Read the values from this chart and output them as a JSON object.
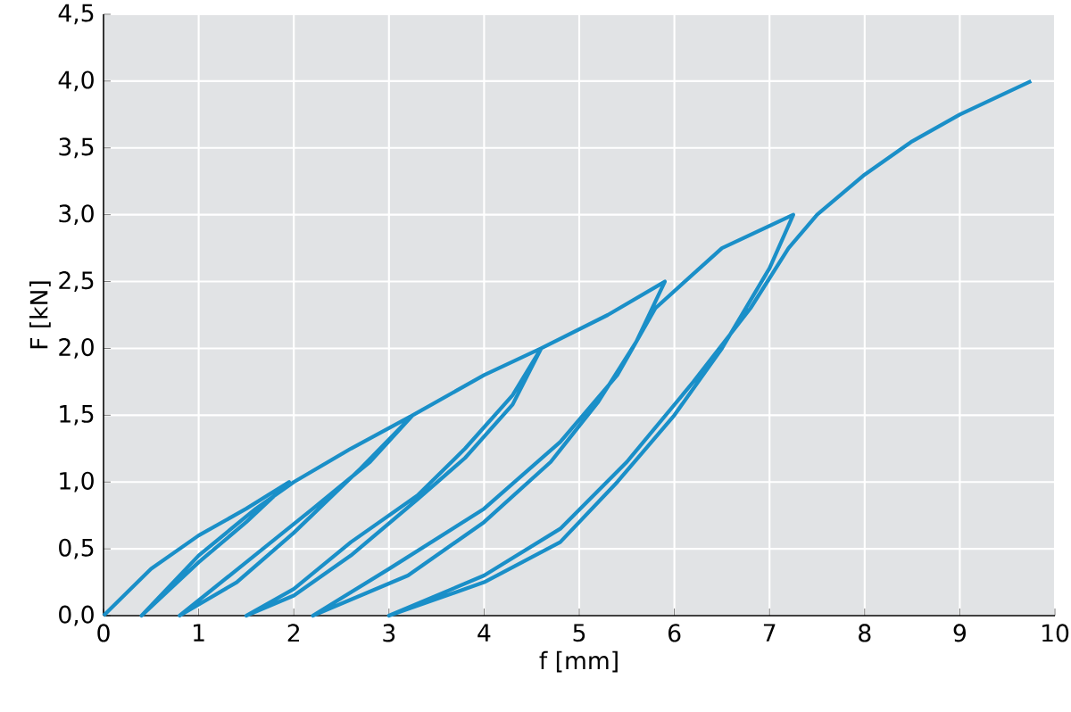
{
  "chart_data": {
    "type": "line",
    "xlabel": "f [mm]",
    "ylabel": "F [kN]",
    "xlim": [
      0,
      10
    ],
    "ylim": [
      0,
      4.5
    ],
    "xticks": [
      0,
      1,
      2,
      3,
      4,
      5,
      6,
      7,
      8,
      9,
      10
    ],
    "yticks": [
      {
        "value": 0,
        "label": "0,0"
      },
      {
        "value": 0.5,
        "label": "0,5"
      },
      {
        "value": 1,
        "label": "1,0"
      },
      {
        "value": 1.5,
        "label": "1,5"
      },
      {
        "value": 2,
        "label": "2,0"
      },
      {
        "value": 2.5,
        "label": "2,5"
      },
      {
        "value": 3,
        "label": "3,0"
      },
      {
        "value": 3.5,
        "label": "3,5"
      },
      {
        "value": 4,
        "label": "4,0"
      },
      {
        "value": 4.5,
        "label": "4,5"
      }
    ],
    "grid": true,
    "marker": "none",
    "line_style": "solid",
    "series": [
      {
        "color": "#1a8fc8",
        "x": [
          0,
          0.5,
          1.0,
          1.5,
          1.95,
          1.5,
          1.0,
          0.4,
          1.0,
          1.6,
          2.0,
          2.6,
          3.25,
          2.7,
          2.0,
          1.4,
          0.8,
          1.5,
          2.2,
          2.8,
          3.25,
          4.0,
          4.6,
          4.3,
          3.8,
          3.3,
          2.6,
          2.0,
          1.5,
          2.0,
          2.6,
          3.3,
          3.8,
          4.3,
          4.6,
          5.3,
          5.9,
          5.6,
          5.2,
          4.7,
          4.0,
          3.2,
          2.2,
          3.0,
          4.0,
          4.8,
          5.4,
          5.8,
          6.5,
          7.25,
          7.0,
          6.5,
          6.0,
          5.4,
          4.8,
          4.0,
          3.0,
          4.0,
          4.8,
          5.5,
          6.2,
          6.8,
          7.2,
          7.5,
          8.0,
          8.5,
          9.0,
          9.75
        ],
        "values": [
          0,
          0.35,
          0.6,
          0.8,
          1.0,
          0.7,
          0.4,
          0,
          0.45,
          0.8,
          1.0,
          1.25,
          1.5,
          1.1,
          0.62,
          0.25,
          0,
          0.4,
          0.8,
          1.15,
          1.5,
          1.8,
          2.0,
          1.58,
          1.18,
          0.87,
          0.45,
          0.15,
          0,
          0.2,
          0.55,
          0.9,
          1.25,
          1.65,
          2.0,
          2.25,
          2.5,
          2.05,
          1.6,
          1.15,
          0.7,
          0.3,
          0,
          0.35,
          0.8,
          1.3,
          1.8,
          2.3,
          2.75,
          3.0,
          2.6,
          2.0,
          1.5,
          1.0,
          0.55,
          0.25,
          0,
          0.3,
          0.65,
          1.15,
          1.75,
          2.3,
          2.75,
          3.0,
          3.3,
          3.55,
          3.75,
          4.0
        ]
      }
    ]
  }
}
